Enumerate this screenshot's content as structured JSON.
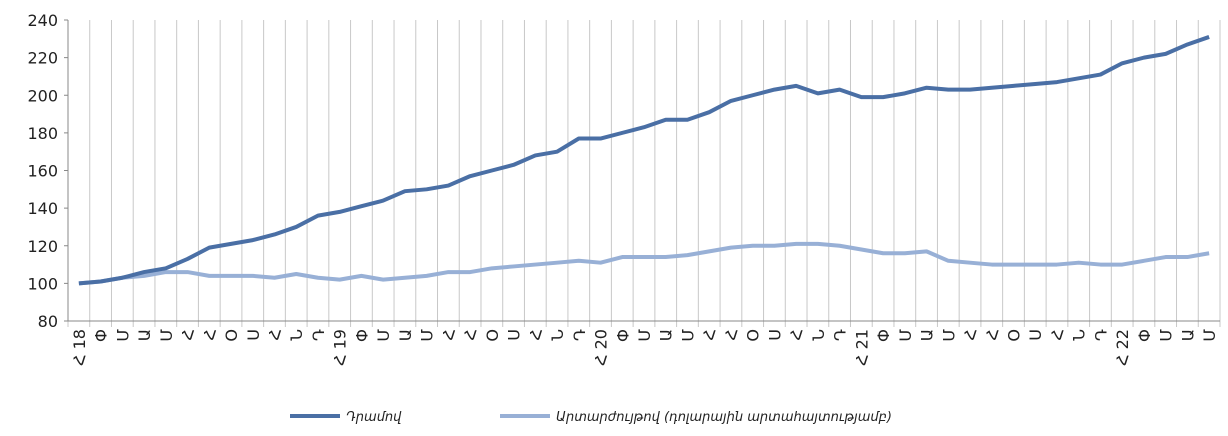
{
  "chart_data": {
    "type": "line",
    "categories": [
      "Հ 18",
      "Փ",
      "Մ",
      "Ա",
      "Մ",
      "Հ",
      "Հ",
      "Օ",
      "Ս",
      "Հ",
      "Ն",
      "Դ",
      "Հ 19",
      "Փ",
      "Մ",
      "Ա",
      "Մ",
      "Հ",
      "Հ",
      "Օ",
      "Ս",
      "Հ",
      "Ն",
      "Դ",
      "Հ 20",
      "Փ",
      "Մ",
      "Ա",
      "Մ",
      "Հ",
      "Հ",
      "Օ",
      "Ս",
      "Հ",
      "Ն",
      "Դ",
      "Հ 21",
      "Փ",
      "Մ",
      "Ա",
      "Մ",
      "Հ",
      "Հ",
      "Օ",
      "Ս",
      "Հ",
      "Ն",
      "Դ",
      "Հ 22",
      "Փ",
      "Մ",
      "Ա",
      "Մ"
    ],
    "series": [
      {
        "name": "Դրամով",
        "color": "#4a6fa5",
        "values": [
          100,
          101,
          103,
          106,
          108,
          113,
          119,
          121,
          123,
          126,
          130,
          136,
          138,
          141,
          144,
          149,
          150,
          152,
          157,
          160,
          163,
          168,
          170,
          177,
          177,
          180,
          183,
          187,
          187,
          191,
          197,
          200,
          203,
          205,
          201,
          203,
          199,
          199,
          201,
          204,
          203,
          203,
          204,
          205,
          206,
          207,
          209,
          211,
          217,
          220,
          222,
          227,
          231
        ]
      },
      {
        "name": "Արտարժույթով (դոլարային արտահայտությամբ)",
        "color": "#98b0d6",
        "values": [
          100,
          101,
          103,
          104,
          106,
          106,
          104,
          104,
          104,
          103,
          105,
          103,
          102,
          104,
          102,
          103,
          104,
          106,
          106,
          108,
          109,
          110,
          111,
          112,
          111,
          114,
          114,
          114,
          115,
          117,
          119,
          120,
          120,
          121,
          121,
          120,
          118,
          116,
          116,
          117,
          112,
          111,
          110,
          110,
          110,
          110,
          111,
          110,
          110,
          112,
          114,
          114,
          116
        ]
      }
    ],
    "ylim": [
      80,
      240
    ],
    "yticks": [
      80,
      100,
      120,
      140,
      160,
      180,
      200,
      220,
      240
    ],
    "grid": true,
    "legend": "bottom"
  }
}
